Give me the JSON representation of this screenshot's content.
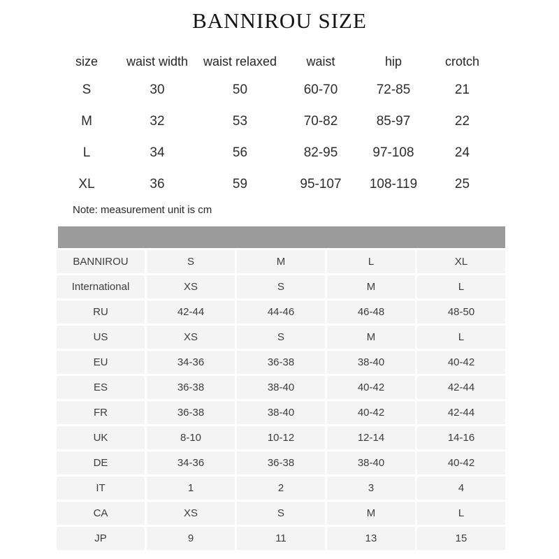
{
  "title": "BANNIROU SIZE",
  "measurement_table": {
    "headers": [
      "size",
      "waist width",
      "waist relaxed",
      "waist",
      "hip",
      "crotch"
    ],
    "rows": [
      [
        "S",
        "30",
        "50",
        "60-70",
        "72-85",
        "21"
      ],
      [
        "M",
        "32",
        "53",
        "70-82",
        "85-97",
        "22"
      ],
      [
        "L",
        "34",
        "56",
        "82-95",
        "97-108",
        "24"
      ],
      [
        "XL",
        "36",
        "59",
        "95-107",
        "108-119",
        "25"
      ]
    ],
    "note": "Note: measurement unit is cm"
  },
  "conversion_table": {
    "rows": [
      {
        "label": "BANNIROU",
        "values": [
          "S",
          "M",
          "L",
          "XL"
        ]
      },
      {
        "label": "International",
        "values": [
          "XS",
          "S",
          "M",
          "L"
        ]
      },
      {
        "label": "RU",
        "values": [
          "42-44",
          "44-46",
          "46-48",
          "48-50"
        ]
      },
      {
        "label": "US",
        "values": [
          "XS",
          "S",
          "M",
          "L"
        ]
      },
      {
        "label": "EU",
        "values": [
          "34-36",
          "36-38",
          "38-40",
          "40-42"
        ]
      },
      {
        "label": "ES",
        "values": [
          "36-38",
          "38-40",
          "40-42",
          "42-44"
        ]
      },
      {
        "label": "FR",
        "values": [
          "36-38",
          "38-40",
          "40-42",
          "42-44"
        ]
      },
      {
        "label": "UK",
        "values": [
          "8-10",
          "10-12",
          "12-14",
          "14-16"
        ]
      },
      {
        "label": "DE",
        "values": [
          "34-36",
          "36-38",
          "38-40",
          "40-42"
        ]
      },
      {
        "label": "IT",
        "values": [
          "1",
          "2",
          "3",
          "4"
        ]
      },
      {
        "label": "CA",
        "values": [
          "XS",
          "S",
          "M",
          "L"
        ]
      },
      {
        "label": "JP",
        "values": [
          "9",
          "11",
          "13",
          "15"
        ]
      }
    ]
  },
  "colors": {
    "header_bar": "#9b9b9b",
    "cell_background": "#f4f4f5",
    "body_text": "#3d3d3d",
    "title_text": "#141414"
  }
}
